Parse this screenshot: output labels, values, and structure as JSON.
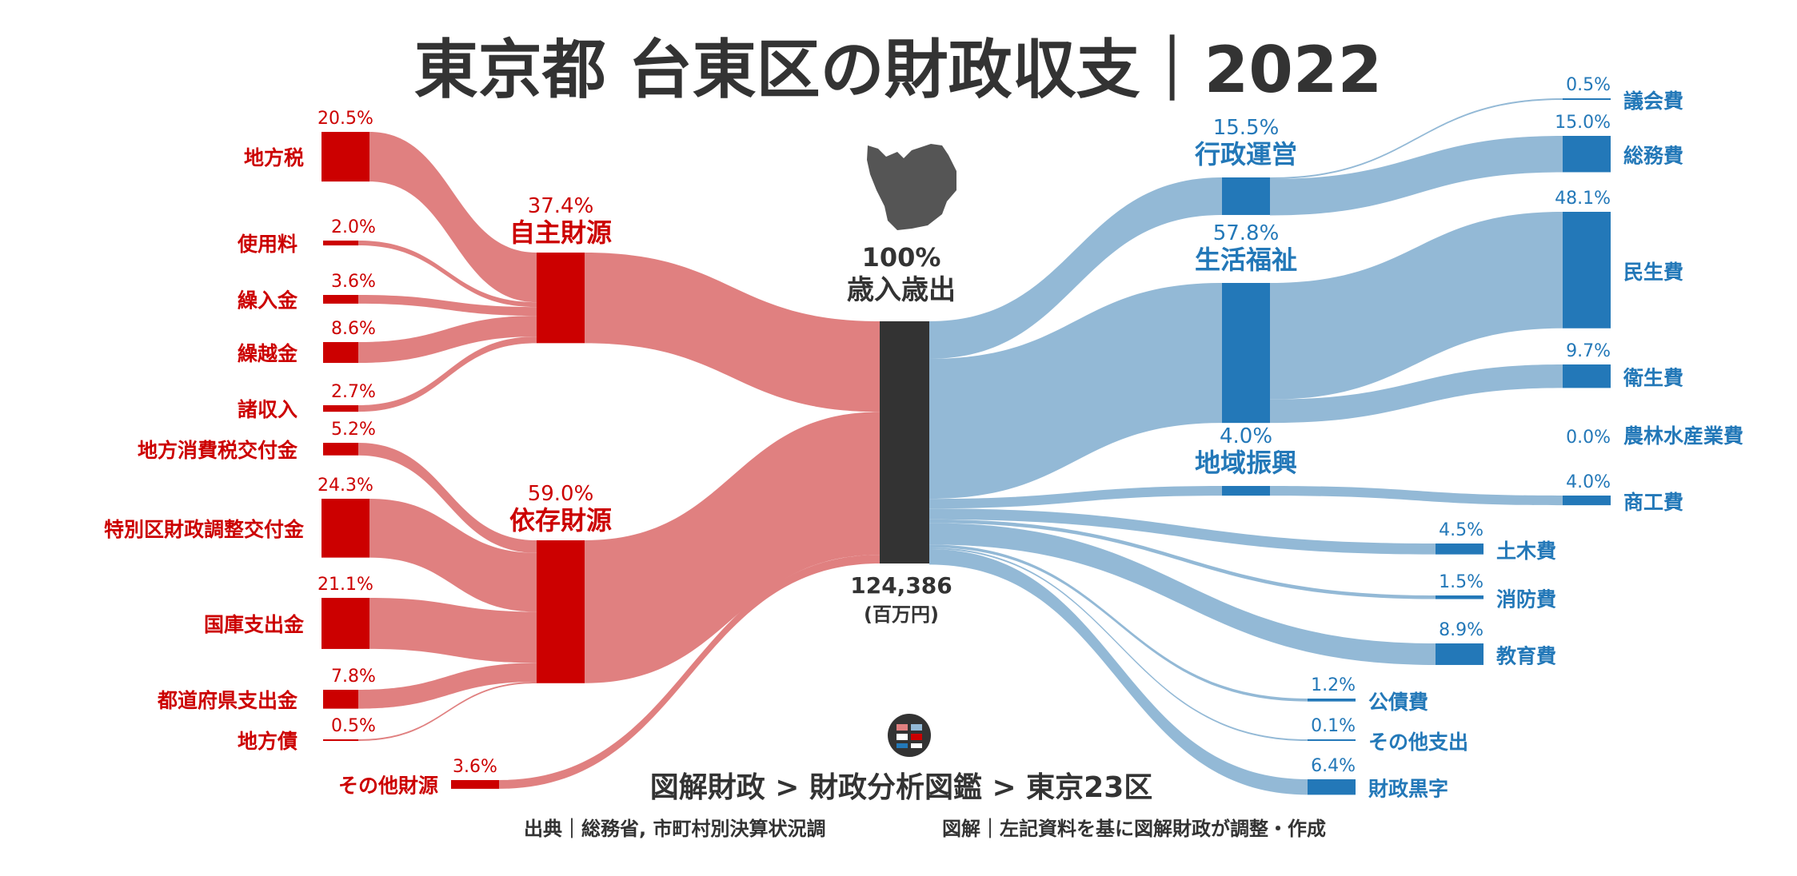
{
  "title": "東京都 台東区の財政収支｜2022",
  "center": {
    "pct": "100%",
    "label": "歳入歳出",
    "total": "124,386",
    "unit": "(百万円)"
  },
  "footer": {
    "breadcrumb": "図解財政 > 財政分析図鑑 > 東京23区",
    "source": "出典｜総務省, 市町村別決算状況調",
    "credit": "図解｜左記資料を基に図解財政が調整・作成"
  },
  "chart_data": {
    "type": "sankey",
    "title": "東京都 台東区の財政収支｜2022",
    "total": 124386,
    "total_unit": "百万円",
    "revenue_groups": [
      {
        "name": "自主財源",
        "pct": 37.4,
        "label": "37.4%",
        "items": [
          {
            "name": "地方税",
            "pct": 20.5,
            "label": "20.5%"
          },
          {
            "name": "使用料",
            "pct": 2.0,
            "label": "2.0%"
          },
          {
            "name": "繰入金",
            "pct": 3.6,
            "label": "3.6%"
          },
          {
            "name": "繰越金",
            "pct": 8.6,
            "label": "8.6%"
          },
          {
            "name": "諸収入",
            "pct": 2.7,
            "label": "2.7%"
          }
        ]
      },
      {
        "name": "依存財源",
        "pct": 59.0,
        "label": "59.0%",
        "items": [
          {
            "name": "地方消費税交付金",
            "pct": 5.2,
            "label": "5.2%"
          },
          {
            "name": "特別区財政調整交付金",
            "pct": 24.3,
            "label": "24.3%"
          },
          {
            "name": "国庫支出金",
            "pct": 21.1,
            "label": "21.1%"
          },
          {
            "name": "都道府県支出金",
            "pct": 7.8,
            "label": "7.8%"
          },
          {
            "name": "地方債",
            "pct": 0.5,
            "label": "0.5%"
          }
        ]
      }
    ],
    "revenue_other": {
      "name": "その他財源",
      "pct": 3.6,
      "label": "3.6%"
    },
    "expenditure_groups": [
      {
        "name": "行政運営",
        "pct": 15.5,
        "label": "15.5%",
        "items": [
          {
            "name": "議会費",
            "pct": 0.5,
            "label": "0.5%"
          },
          {
            "name": "総務費",
            "pct": 15.0,
            "label": "15.0%"
          }
        ]
      },
      {
        "name": "生活福祉",
        "pct": 57.8,
        "label": "57.8%",
        "items": [
          {
            "name": "民生費",
            "pct": 48.1,
            "label": "48.1%"
          },
          {
            "name": "衛生費",
            "pct": 9.7,
            "label": "9.7%"
          }
        ]
      },
      {
        "name": "地域振興",
        "pct": 4.0,
        "label": "4.0%",
        "items": [
          {
            "name": "農林水産業費",
            "pct": 0.0,
            "label": "0.0%"
          },
          {
            "name": "商工費",
            "pct": 4.0,
            "label": "4.0%"
          }
        ]
      }
    ],
    "expenditure_other": [
      {
        "name": "土木費",
        "pct": 4.5,
        "label": "4.5%"
      },
      {
        "name": "消防費",
        "pct": 1.5,
        "label": "1.5%"
      },
      {
        "name": "教育費",
        "pct": 8.9,
        "label": "8.9%"
      },
      {
        "name": "公債費",
        "pct": 1.2,
        "label": "1.2%"
      },
      {
        "name": "その他支出",
        "pct": 0.1,
        "label": "0.1%"
      },
      {
        "name": "財政黒字",
        "pct": 6.4,
        "label": "6.4%"
      }
    ]
  }
}
